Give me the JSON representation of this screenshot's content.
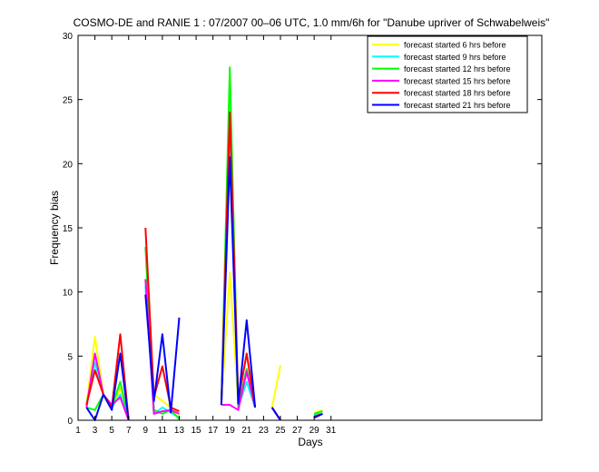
{
  "chart_data": {
    "type": "line",
    "title": "COSMO-DE and RANIE 1 : 07/2007 00–06 UTC, 1.0 mm/6h for \"Danube upriver of Schwabelweis\"",
    "xlabel": "Days",
    "ylabel": "Frequency bias",
    "xlim": [
      1,
      56
    ],
    "ylim": [
      0,
      30
    ],
    "xticks": [
      1,
      3,
      5,
      7,
      9,
      11,
      13,
      15,
      17,
      19,
      21,
      23,
      25,
      27,
      29,
      31
    ],
    "yticks": [
      0,
      5,
      10,
      15,
      20,
      25,
      30
    ],
    "grid": false,
    "legend": "top-right",
    "series": [
      {
        "name": "forecast started  6 hrs before",
        "color": "#ffff00",
        "segments": [
          [
            [
              2,
              1.2
            ],
            [
              3,
              6.5
            ],
            [
              4,
              2.0
            ],
            [
              5,
              1.0
            ],
            [
              6,
              2.5
            ],
            [
              7,
              0
            ]
          ],
          [
            [
              9,
              11.0
            ],
            [
              10,
              2.0
            ],
            [
              11,
              1.5
            ],
            [
              12,
              1.0
            ],
            [
              13,
              0.4
            ]
          ],
          [
            [
              18,
              1.2
            ],
            [
              19,
              11.5
            ],
            [
              20,
              1.2
            ],
            [
              21,
              3.8
            ],
            [
              22,
              1.0
            ]
          ],
          [
            [
              24,
              1.0
            ],
            [
              25,
              4.3
            ]
          ],
          [
            [
              27,
              0.3
            ]
          ],
          [
            [
              29,
              0.6
            ],
            [
              30,
              0.8
            ]
          ]
        ]
      },
      {
        "name": "forecast started  9 hrs before",
        "color": "#00ffff",
        "segments": [
          [
            [
              2,
              1.2
            ],
            [
              3,
              4.5
            ],
            [
              4,
              2.0
            ],
            [
              5,
              1.0
            ],
            [
              6,
              2.0
            ],
            [
              7,
              0
            ]
          ],
          [
            [
              9,
              10.5
            ],
            [
              10,
              0.5
            ],
            [
              11,
              1.0
            ],
            [
              12,
              0.6
            ],
            [
              13,
              0.2
            ]
          ],
          [
            [
              18,
              1.2
            ],
            [
              19,
              22.0
            ],
            [
              20,
              1.0
            ],
            [
              21,
              3.0
            ],
            [
              22,
              1.0
            ]
          ],
          [
            [
              24,
              1.0
            ],
            [
              25,
              0
            ]
          ],
          [
            [
              27,
              0.6
            ]
          ],
          [
            [
              29,
              0.4
            ],
            [
              30,
              0.7
            ]
          ]
        ]
      },
      {
        "name": "forecast started 12 hrs before",
        "color": "#00ff00",
        "segments": [
          [
            [
              2,
              1.0
            ],
            [
              3,
              0.8
            ],
            [
              4,
              2.0
            ],
            [
              5,
              1.0
            ],
            [
              6,
              3.0
            ],
            [
              7,
              0
            ]
          ],
          [
            [
              9,
              13.5
            ],
            [
              10,
              0.8
            ],
            [
              11,
              0.5
            ],
            [
              12,
              0.8
            ],
            [
              13,
              0.1
            ]
          ],
          [
            [
              18,
              1.2
            ],
            [
              19,
              27.5
            ],
            [
              20,
              1.0
            ],
            [
              21,
              4.0
            ],
            [
              22,
              1.0
            ]
          ],
          [
            [
              24,
              1.0
            ],
            [
              25,
              0
            ]
          ],
          [
            [
              27,
              0.6
            ]
          ],
          [
            [
              29,
              0.5
            ],
            [
              30,
              0.7
            ]
          ]
        ]
      },
      {
        "name": "forecast started 15 hrs before",
        "color": "#ff00ff",
        "segments": [
          [
            [
              2,
              1.0
            ],
            [
              3,
              5.2
            ],
            [
              4,
              2.0
            ],
            [
              5,
              1.2
            ],
            [
              6,
              1.8
            ],
            [
              7,
              0
            ]
          ],
          [
            [
              9,
              11.0
            ],
            [
              10,
              0.5
            ],
            [
              11,
              0.7
            ],
            [
              12,
              0.8
            ],
            [
              13,
              0.5
            ]
          ],
          [
            [
              18,
              1.2
            ],
            [
              19,
              1.2
            ],
            [
              20,
              0.8
            ],
            [
              21,
              3.8
            ],
            [
              22,
              1.0
            ]
          ],
          [
            [
              24,
              1.0
            ],
            [
              25,
              0
            ]
          ],
          [
            [
              27,
              0.6
            ]
          ],
          [
            [
              29,
              0.2
            ],
            [
              30,
              0.5
            ]
          ]
        ]
      },
      {
        "name": "forecast started 18 hrs before",
        "color": "#ff0000",
        "segments": [
          [
            [
              2,
              1.2
            ],
            [
              3,
              3.9
            ],
            [
              4,
              2.0
            ],
            [
              5,
              1.0
            ],
            [
              6,
              6.7
            ],
            [
              7,
              0
            ]
          ],
          [
            [
              9,
              15.0
            ],
            [
              10,
              1.8
            ],
            [
              11,
              4.2
            ],
            [
              12,
              1.0
            ],
            [
              13,
              0.7
            ]
          ],
          [
            [
              18,
              1.2
            ],
            [
              19,
              24.0
            ],
            [
              20,
              1.5
            ],
            [
              21,
              5.2
            ],
            [
              22,
              1.0
            ]
          ],
          [
            [
              24,
              1.0
            ],
            [
              25,
              0
            ]
          ],
          [
            [
              27,
              0.6
            ]
          ],
          [
            [
              29,
              0.3
            ],
            [
              30,
              0.5
            ]
          ]
        ]
      },
      {
        "name": "forecast started 21 hrs before",
        "color": "#0000ff",
        "segments": [
          [
            [
              2,
              1.0
            ],
            [
              3,
              0
            ],
            [
              4,
              2.0
            ],
            [
              5,
              0.8
            ],
            [
              6,
              5.2
            ],
            [
              7,
              0
            ]
          ],
          [
            [
              9,
              9.8
            ],
            [
              10,
              1.5
            ],
            [
              11,
              6.7
            ],
            [
              12,
              0.6
            ],
            [
              13,
              8.0
            ]
          ],
          [
            [
              18,
              1.2
            ],
            [
              19,
              20.5
            ],
            [
              20,
              1.3
            ],
            [
              21,
              7.8
            ],
            [
              22,
              1.0
            ]
          ],
          [
            [
              24,
              1.0
            ],
            [
              25,
              0
            ]
          ],
          [
            [
              27,
              0.2
            ]
          ],
          [
            [
              29,
              0.2
            ],
            [
              30,
              0.5
            ]
          ]
        ]
      }
    ]
  }
}
